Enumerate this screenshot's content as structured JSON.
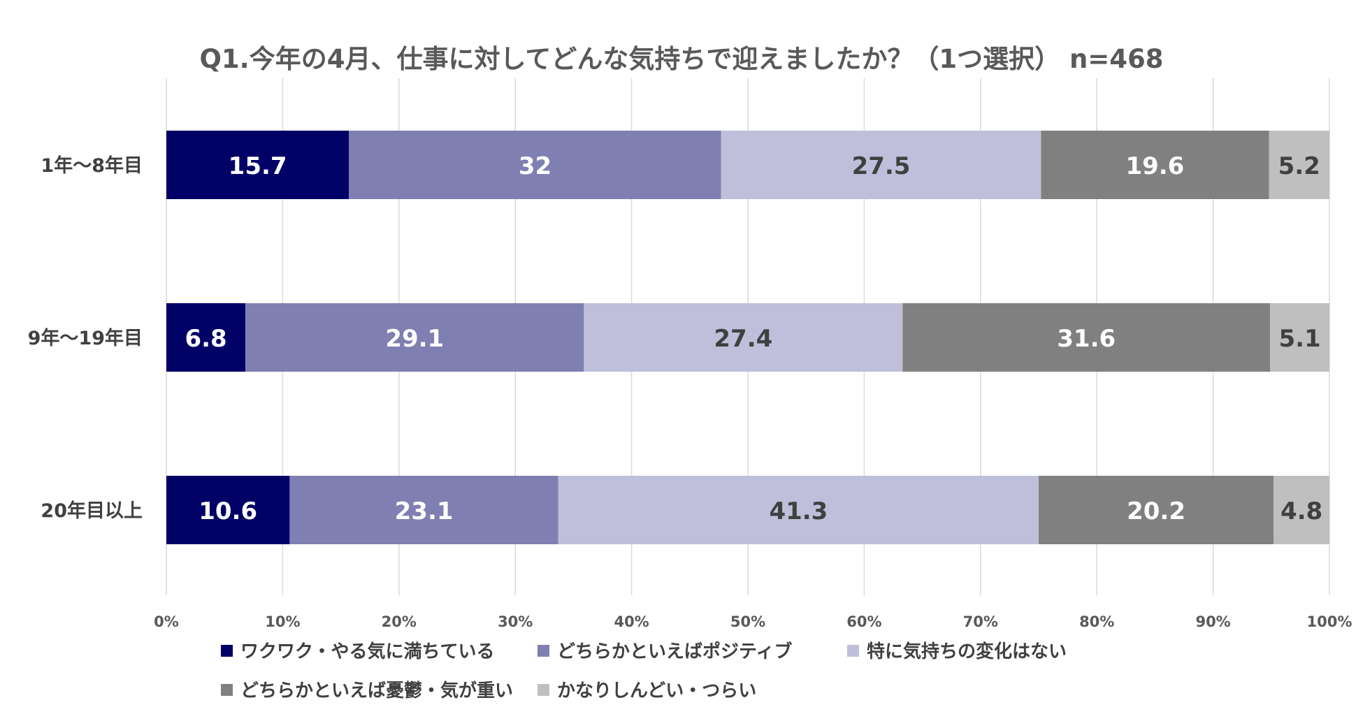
{
  "chart_data": {
    "type": "bar",
    "orientation": "horizontal",
    "stacked": "percent",
    "title": "Q1.今年の4月、仕事に対してどんな気持ちで迎えましたか？（1つ選択） n=468",
    "categories": [
      "1年～8年目",
      "9年～19年目",
      "20年目以上"
    ],
    "series": [
      {
        "name": "ワクワク・やる気に満ちている",
        "color": "#000066",
        "label_color": "#ffffff",
        "values": [
          15.7,
          6.8,
          10.6
        ]
      },
      {
        "name": "どちらかといえばポジティブ",
        "color": "#7f7fb2",
        "label_color": "#ffffff",
        "values": [
          32,
          29.1,
          23.1
        ]
      },
      {
        "name": "特に気持ちの変化はない",
        "color": "#bfbfdb",
        "label_color": "#404040",
        "values": [
          27.5,
          27.4,
          41.3
        ]
      },
      {
        "name": "どちらかといえば憂鬱・気が重い",
        "color": "#808080",
        "label_color": "#ffffff",
        "values": [
          19.6,
          31.6,
          20.2
        ]
      },
      {
        "name": "かなりしんどい・つらい",
        "color": "#bfbfbf",
        "label_color": "#404040",
        "values": [
          5.2,
          5.1,
          4.8
        ]
      }
    ],
    "x_ticks": [
      "0%",
      "10%",
      "20%",
      "30%",
      "40%",
      "50%",
      "60%",
      "70%",
      "80%",
      "90%",
      "100%"
    ],
    "xlim": [
      0,
      100
    ],
    "grid": true,
    "legend": "bottom"
  }
}
